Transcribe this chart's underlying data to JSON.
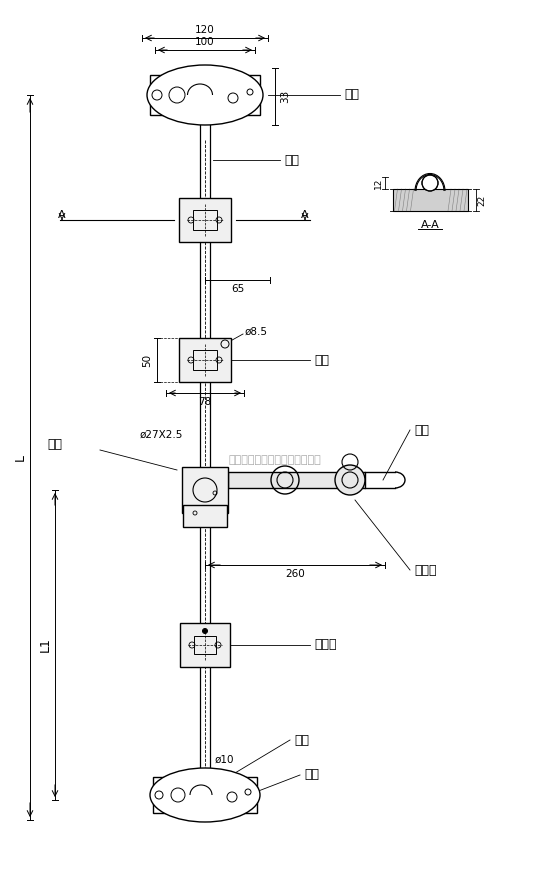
{
  "bg_color": "#ffffff",
  "line_color": "#000000",
  "text_color": "#000000",
  "fig_width": 5.5,
  "fig_height": 8.94,
  "dpi": 100,
  "title": "",
  "company": "上海群唯五金橡塑制品有限公司",
  "labels": {
    "suo_zuo_top": "锁座",
    "suo_tou_top": "锁头",
    "tuo_jia": "托架",
    "shou_bing": "手柄",
    "fang_kuai": "方块",
    "shou_bing_zuo": "手柄座",
    "ding_wei_huan": "定位环",
    "suo_tou_bot": "锁头",
    "suo_zuo_bot": "锁座",
    "AA": "A-A"
  },
  "dims": {
    "d120": "120",
    "d100": "100",
    "d33": "33",
    "d65": "65",
    "d50": "50",
    "d85": "ø8.5",
    "d78": "78",
    "d27x25": "ø27X2.5",
    "d260": "260",
    "d10": "ø10",
    "dL": "L",
    "dL1": "L1",
    "dA_top": "A",
    "dA_bot": "A",
    "d12": "12",
    "d22": "22"
  }
}
